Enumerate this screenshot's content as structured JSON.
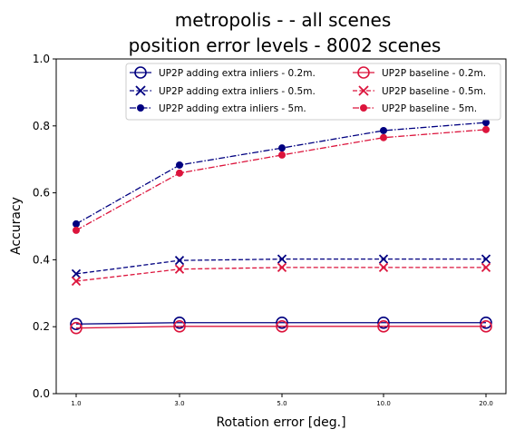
{
  "chart_data": {
    "type": "line",
    "title_line1": "metropolis -  - all scenes",
    "title_line2": "position error levels - 8002 scenes",
    "xlabel": "Rotation error [deg.]",
    "ylabel": "Accuracy",
    "x": [
      "1.0",
      "3.0",
      "5.0",
      "10.0",
      "20.0"
    ],
    "ylim": [
      0.0,
      1.0
    ],
    "yticks": [
      "0.0",
      "0.2",
      "0.4",
      "0.6",
      "0.8",
      "1.0"
    ],
    "grid": false,
    "legend_position": "top-right",
    "colors": {
      "extra": "#000080",
      "baseline": "#dc143c"
    },
    "series": [
      {
        "name": "UP2P adding extra inliers - 0.2m.",
        "group": "extra",
        "style": "solid",
        "marker": "circle-open",
        "values": [
          0.208,
          0.212,
          0.212,
          0.212,
          0.212
        ]
      },
      {
        "name": "UP2P adding extra inliers - 0.5m.",
        "group": "extra",
        "style": "dashed",
        "marker": "x",
        "values": [
          0.358,
          0.398,
          0.402,
          0.402,
          0.402
        ]
      },
      {
        "name": "UP2P adding extra inliers - 5m.",
        "group": "extra",
        "style": "dashdot",
        "marker": "dot",
        "values": [
          0.507,
          0.683,
          0.734,
          0.786,
          0.81
        ]
      },
      {
        "name": "UP2P baseline - 0.2m.",
        "group": "baseline",
        "style": "solid",
        "marker": "circle-open",
        "values": [
          0.196,
          0.201,
          0.201,
          0.201,
          0.201
        ]
      },
      {
        "name": "UP2P baseline - 0.5m.",
        "group": "baseline",
        "style": "dashed",
        "marker": "x",
        "values": [
          0.336,
          0.372,
          0.377,
          0.377,
          0.377
        ]
      },
      {
        "name": "UP2P baseline - 5m.",
        "group": "baseline",
        "style": "dashdot",
        "marker": "dot",
        "values": [
          0.488,
          0.659,
          0.713,
          0.765,
          0.789
        ]
      }
    ]
  }
}
